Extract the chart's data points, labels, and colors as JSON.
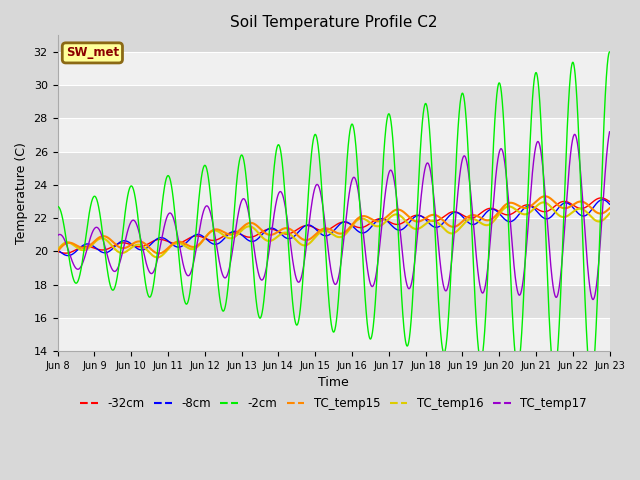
{
  "title": "Soil Temperature Profile C2",
  "xlabel": "Time",
  "ylabel": "Temperature (C)",
  "ylim": [
    14,
    33
  ],
  "yticks": [
    14,
    16,
    18,
    20,
    22,
    24,
    26,
    28,
    30,
    32
  ],
  "bg_color": "#d8d8d8",
  "plot_bg_color": "#d8d8d8",
  "annotation_text": "SW_met",
  "annotation_fg": "#8b0000",
  "annotation_bg": "#ffff99",
  "annotation_border": "#8b6914",
  "colors": {
    "neg32cm": "#ff0000",
    "neg8cm": "#0000ff",
    "neg2cm": "#00ee00",
    "tc15": "#ff8800",
    "tc16": "#ddcc00",
    "tc17": "#9900cc"
  },
  "legend_labels": [
    "-32cm",
    "-8cm",
    "-2cm",
    "TC_temp15",
    "TC_temp16",
    "TC_temp17"
  ],
  "grid_color": "#ffffff"
}
